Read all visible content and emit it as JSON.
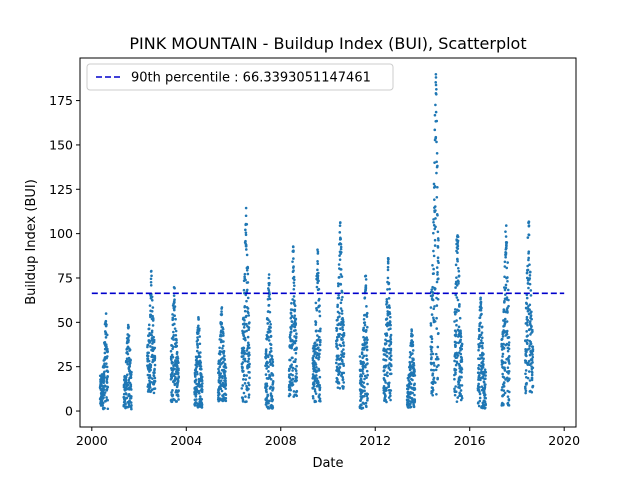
{
  "chart_data": {
    "type": "scatter",
    "title": "PINK MOUNTAIN - Buildup Index (BUI), Scatterplot",
    "xlabel": "Date",
    "ylabel": "Buildup Index (BUI)",
    "x_ticks": [
      2000,
      2004,
      2008,
      2012,
      2016,
      2020
    ],
    "y_ticks": [
      0,
      25,
      50,
      75,
      100,
      125,
      150,
      175
    ],
    "xlim": [
      1999.5,
      2020.5
    ],
    "ylim": [
      -9,
      199
    ],
    "grid": false,
    "legend_position": "top-left",
    "point_color": "#1f77b4",
    "line_color": "#0000cc",
    "percentile_line": {
      "label": "90th percentile : 66.3393051147461",
      "value": 66.3393051147461,
      "x_range": [
        2000.0,
        2020.0
      ]
    },
    "seasons": [
      {
        "year": 2000,
        "start": 2000.35,
        "end": 2000.68,
        "min": 1,
        "max": 55,
        "peak_t": 0.75
      },
      {
        "year": 2001,
        "start": 2001.35,
        "end": 2001.68,
        "min": 1,
        "max": 50,
        "peak_t": 0.6
      },
      {
        "year": 2002,
        "start": 2002.35,
        "end": 2002.68,
        "min": 10,
        "max": 80,
        "peak_t": 0.5
      },
      {
        "year": 2003,
        "start": 2003.35,
        "end": 2003.68,
        "min": 5,
        "max": 72,
        "peak_t": 0.4
      },
      {
        "year": 2004,
        "start": 2004.35,
        "end": 2004.68,
        "min": 2,
        "max": 55,
        "peak_t": 0.5
      },
      {
        "year": 2005,
        "start": 2005.35,
        "end": 2005.68,
        "min": 5,
        "max": 60,
        "peak_t": 0.45
      },
      {
        "year": 2006,
        "start": 2006.35,
        "end": 2006.68,
        "min": 5,
        "max": 117,
        "peak_t": 0.55
      },
      {
        "year": 2007,
        "start": 2007.35,
        "end": 2007.68,
        "min": 1,
        "max": 77,
        "peak_t": 0.45
      },
      {
        "year": 2008,
        "start": 2008.35,
        "end": 2008.68,
        "min": 8,
        "max": 94,
        "peak_t": 0.55
      },
      {
        "year": 2009,
        "start": 2009.35,
        "end": 2009.68,
        "min": 5,
        "max": 91,
        "peak_t": 0.65
      },
      {
        "year": 2010,
        "start": 2010.35,
        "end": 2010.68,
        "min": 12,
        "max": 107,
        "peak_t": 0.5
      },
      {
        "year": 2011,
        "start": 2011.35,
        "end": 2011.68,
        "min": 1,
        "max": 87,
        "peak_t": 0.75
      },
      {
        "year": 2012,
        "start": 2012.35,
        "end": 2012.68,
        "min": 5,
        "max": 88,
        "peak_t": 0.6
      },
      {
        "year": 2013,
        "start": 2013.35,
        "end": 2013.68,
        "min": 2,
        "max": 46,
        "peak_t": 0.6
      },
      {
        "year": 2014,
        "start": 2014.35,
        "end": 2014.68,
        "min": 8,
        "max": 190,
        "peak_t": 0.65
      },
      {
        "year": 2015,
        "start": 2015.35,
        "end": 2015.68,
        "min": 5,
        "max": 107,
        "peak_t": 0.4
      },
      {
        "year": 2016,
        "start": 2016.35,
        "end": 2016.68,
        "min": 1,
        "max": 65,
        "peak_t": 0.35
      },
      {
        "year": 2017,
        "start": 2017.35,
        "end": 2017.68,
        "min": 3,
        "max": 110,
        "peak_t": 0.6
      },
      {
        "year": 2018,
        "start": 2018.35,
        "end": 2018.68,
        "min": 10,
        "max": 108,
        "peak_t": 0.45
      }
    ]
  }
}
